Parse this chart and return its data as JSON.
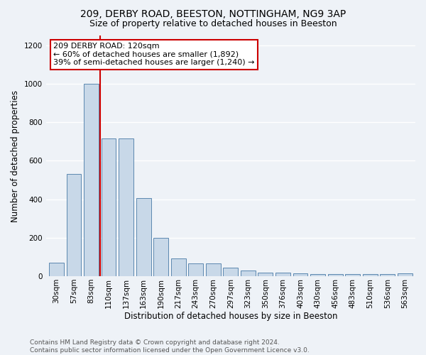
{
  "title1": "209, DERBY ROAD, BEESTON, NOTTINGHAM, NG9 3AP",
  "title2": "Size of property relative to detached houses in Beeston",
  "xlabel": "Distribution of detached houses by size in Beeston",
  "ylabel": "Number of detached properties",
  "categories": [
    "30sqm",
    "57sqm",
    "83sqm",
    "110sqm",
    "137sqm",
    "163sqm",
    "190sqm",
    "217sqm",
    "243sqm",
    "270sqm",
    "297sqm",
    "323sqm",
    "350sqm",
    "376sqm",
    "403sqm",
    "430sqm",
    "456sqm",
    "483sqm",
    "510sqm",
    "536sqm",
    "563sqm"
  ],
  "values": [
    70,
    530,
    1000,
    715,
    715,
    405,
    200,
    93,
    65,
    65,
    45,
    30,
    20,
    20,
    15,
    12,
    10,
    10,
    10,
    10,
    15
  ],
  "bar_color": "#c8d8e8",
  "bar_edge_color": "#5c88b0",
  "vline_x": 2.5,
  "vline_color": "#cc0000",
  "annotation_text": "209 DERBY ROAD: 120sqm\n← 60% of detached houses are smaller (1,892)\n39% of semi-detached houses are larger (1,240) →",
  "annotation_box_color": "#ffffff",
  "annotation_box_edge_color": "#cc0000",
  "ylim": [
    0,
    1250
  ],
  "yticks": [
    0,
    200,
    400,
    600,
    800,
    1000,
    1200
  ],
  "bg_color": "#eef2f7",
  "grid_color": "#ffffff",
  "footer_text": "Contains HM Land Registry data © Crown copyright and database right 2024.\nContains public sector information licensed under the Open Government Licence v3.0.",
  "title1_fontsize": 10,
  "title2_fontsize": 9,
  "xlabel_fontsize": 8.5,
  "ylabel_fontsize": 8.5,
  "tick_fontsize": 7.5,
  "annotation_fontsize": 8,
  "footer_fontsize": 6.5
}
